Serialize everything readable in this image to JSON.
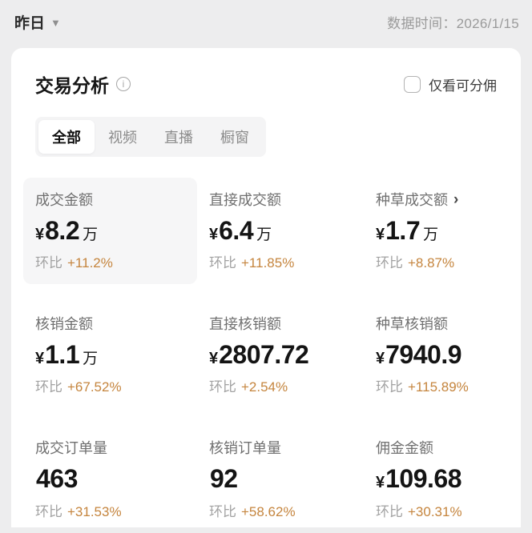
{
  "topbar": {
    "period": "昨日",
    "data_time_label": "数据时间：",
    "data_time_value": "2026/1/15"
  },
  "icons": {
    "caret_down": "▼",
    "info": "i",
    "chevron_right": "›"
  },
  "card": {
    "title": "交易分析",
    "filter_label": "仅看可分佣",
    "delta_label": "环比",
    "tabs": [
      {
        "label": "全部",
        "active": true
      },
      {
        "label": "视频",
        "active": false
      },
      {
        "label": "直播",
        "active": false
      },
      {
        "label": "橱窗",
        "active": false
      }
    ],
    "metrics": [
      {
        "label": "成交金额",
        "prefix": "¥",
        "value": "8.2",
        "suffix": "万",
        "delta": "+11.2%",
        "highlight": true,
        "chevron": false
      },
      {
        "label": "直接成交额",
        "prefix": "¥",
        "value": "6.4",
        "suffix": "万",
        "delta": "+11.85%",
        "highlight": false,
        "chevron": false
      },
      {
        "label": "种草成交额",
        "prefix": "¥",
        "value": "1.7",
        "suffix": "万",
        "delta": "+8.87%",
        "highlight": false,
        "chevron": true
      },
      {
        "label": "核销金额",
        "prefix": "¥",
        "value": "1.1",
        "suffix": "万",
        "delta": "+67.52%",
        "highlight": false,
        "chevron": false
      },
      {
        "label": "直接核销额",
        "prefix": "¥",
        "value": "2807.72",
        "suffix": "",
        "delta": "+2.54%",
        "highlight": false,
        "chevron": false
      },
      {
        "label": "种草核销额",
        "prefix": "¥",
        "value": "7940.9",
        "suffix": "",
        "delta": "+115.89%",
        "highlight": false,
        "chevron": false
      },
      {
        "label": "成交订单量",
        "prefix": "",
        "value": "463",
        "suffix": "",
        "delta": "+31.53%",
        "highlight": false,
        "chevron": false
      },
      {
        "label": "核销订单量",
        "prefix": "",
        "value": "92",
        "suffix": "",
        "delta": "+58.62%",
        "highlight": false,
        "chevron": false
      },
      {
        "label": "佣金金额",
        "prefix": "¥",
        "value": "109.68",
        "suffix": "",
        "delta": "+30.31%",
        "highlight": false,
        "chevron": false
      }
    ]
  },
  "colors": {
    "page_background": "#ededee",
    "card_background": "#ffffff",
    "accent_delta": "#c5853e",
    "label_gray": "#707070",
    "value_black": "#141414",
    "highlight_cell": "#f6f6f7",
    "tab_bar": "#f4f4f5"
  }
}
